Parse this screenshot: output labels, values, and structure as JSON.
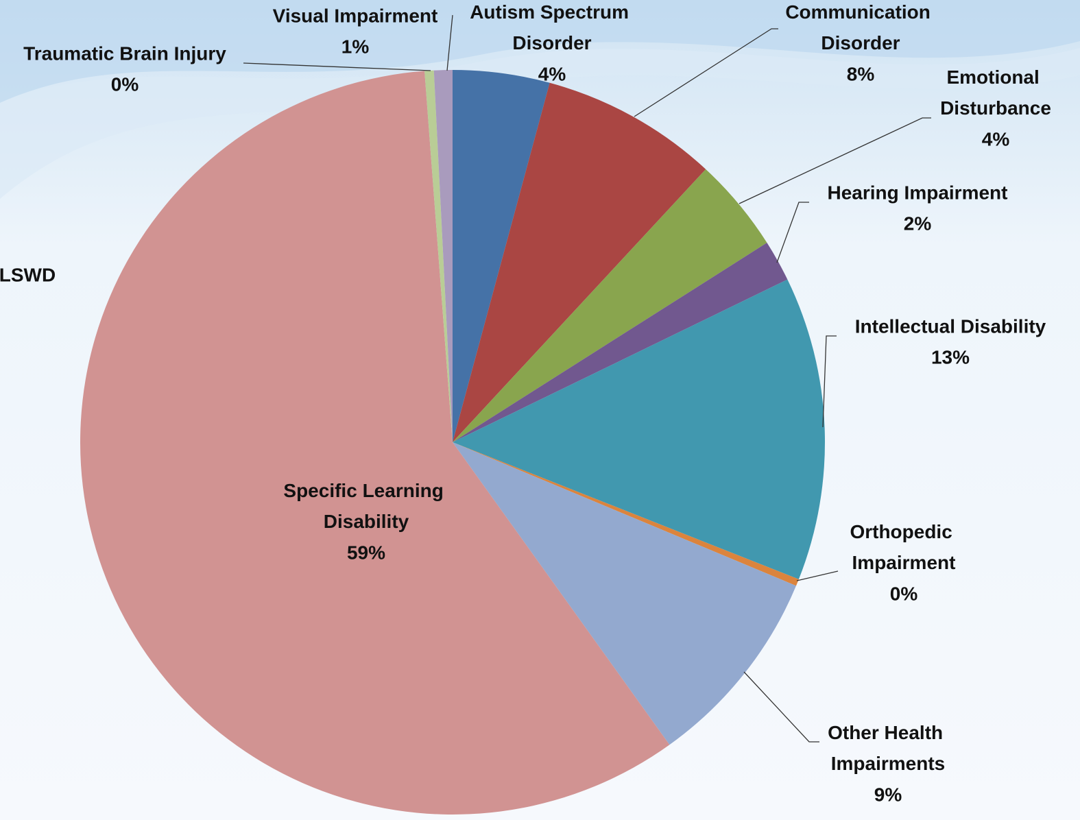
{
  "chart_data": {
    "type": "pie",
    "categories": [
      "Autism Spectrum Disorder",
      "Communication Disorder",
      "Emotional Disturbance",
      "Hearing Impairment",
      "Intellectual Disability",
      "Orthopedic Impairment",
      "Other Health Impairments",
      "Specific Learning Disability",
      "Traumatic Brain Injury",
      "Visual Impairment"
    ],
    "values": [
      4.2,
      7.7,
      4.1,
      1.8,
      13.2,
      0.3,
      8.8,
      58.7,
      0.4,
      0.8
    ],
    "value_labels": [
      "4%",
      "8%",
      "4%",
      "2%",
      "13%",
      "0%",
      "9%",
      "59%",
      "0%",
      "1%"
    ],
    "colors": [
      "#4572a7",
      "#aa4643",
      "#89a54e",
      "#71588f",
      "#4198af",
      "#db843d",
      "#93a9cf",
      "#d19392",
      "#b9cd96",
      "#a99bbd"
    ],
    "side_label": "LSWD"
  }
}
